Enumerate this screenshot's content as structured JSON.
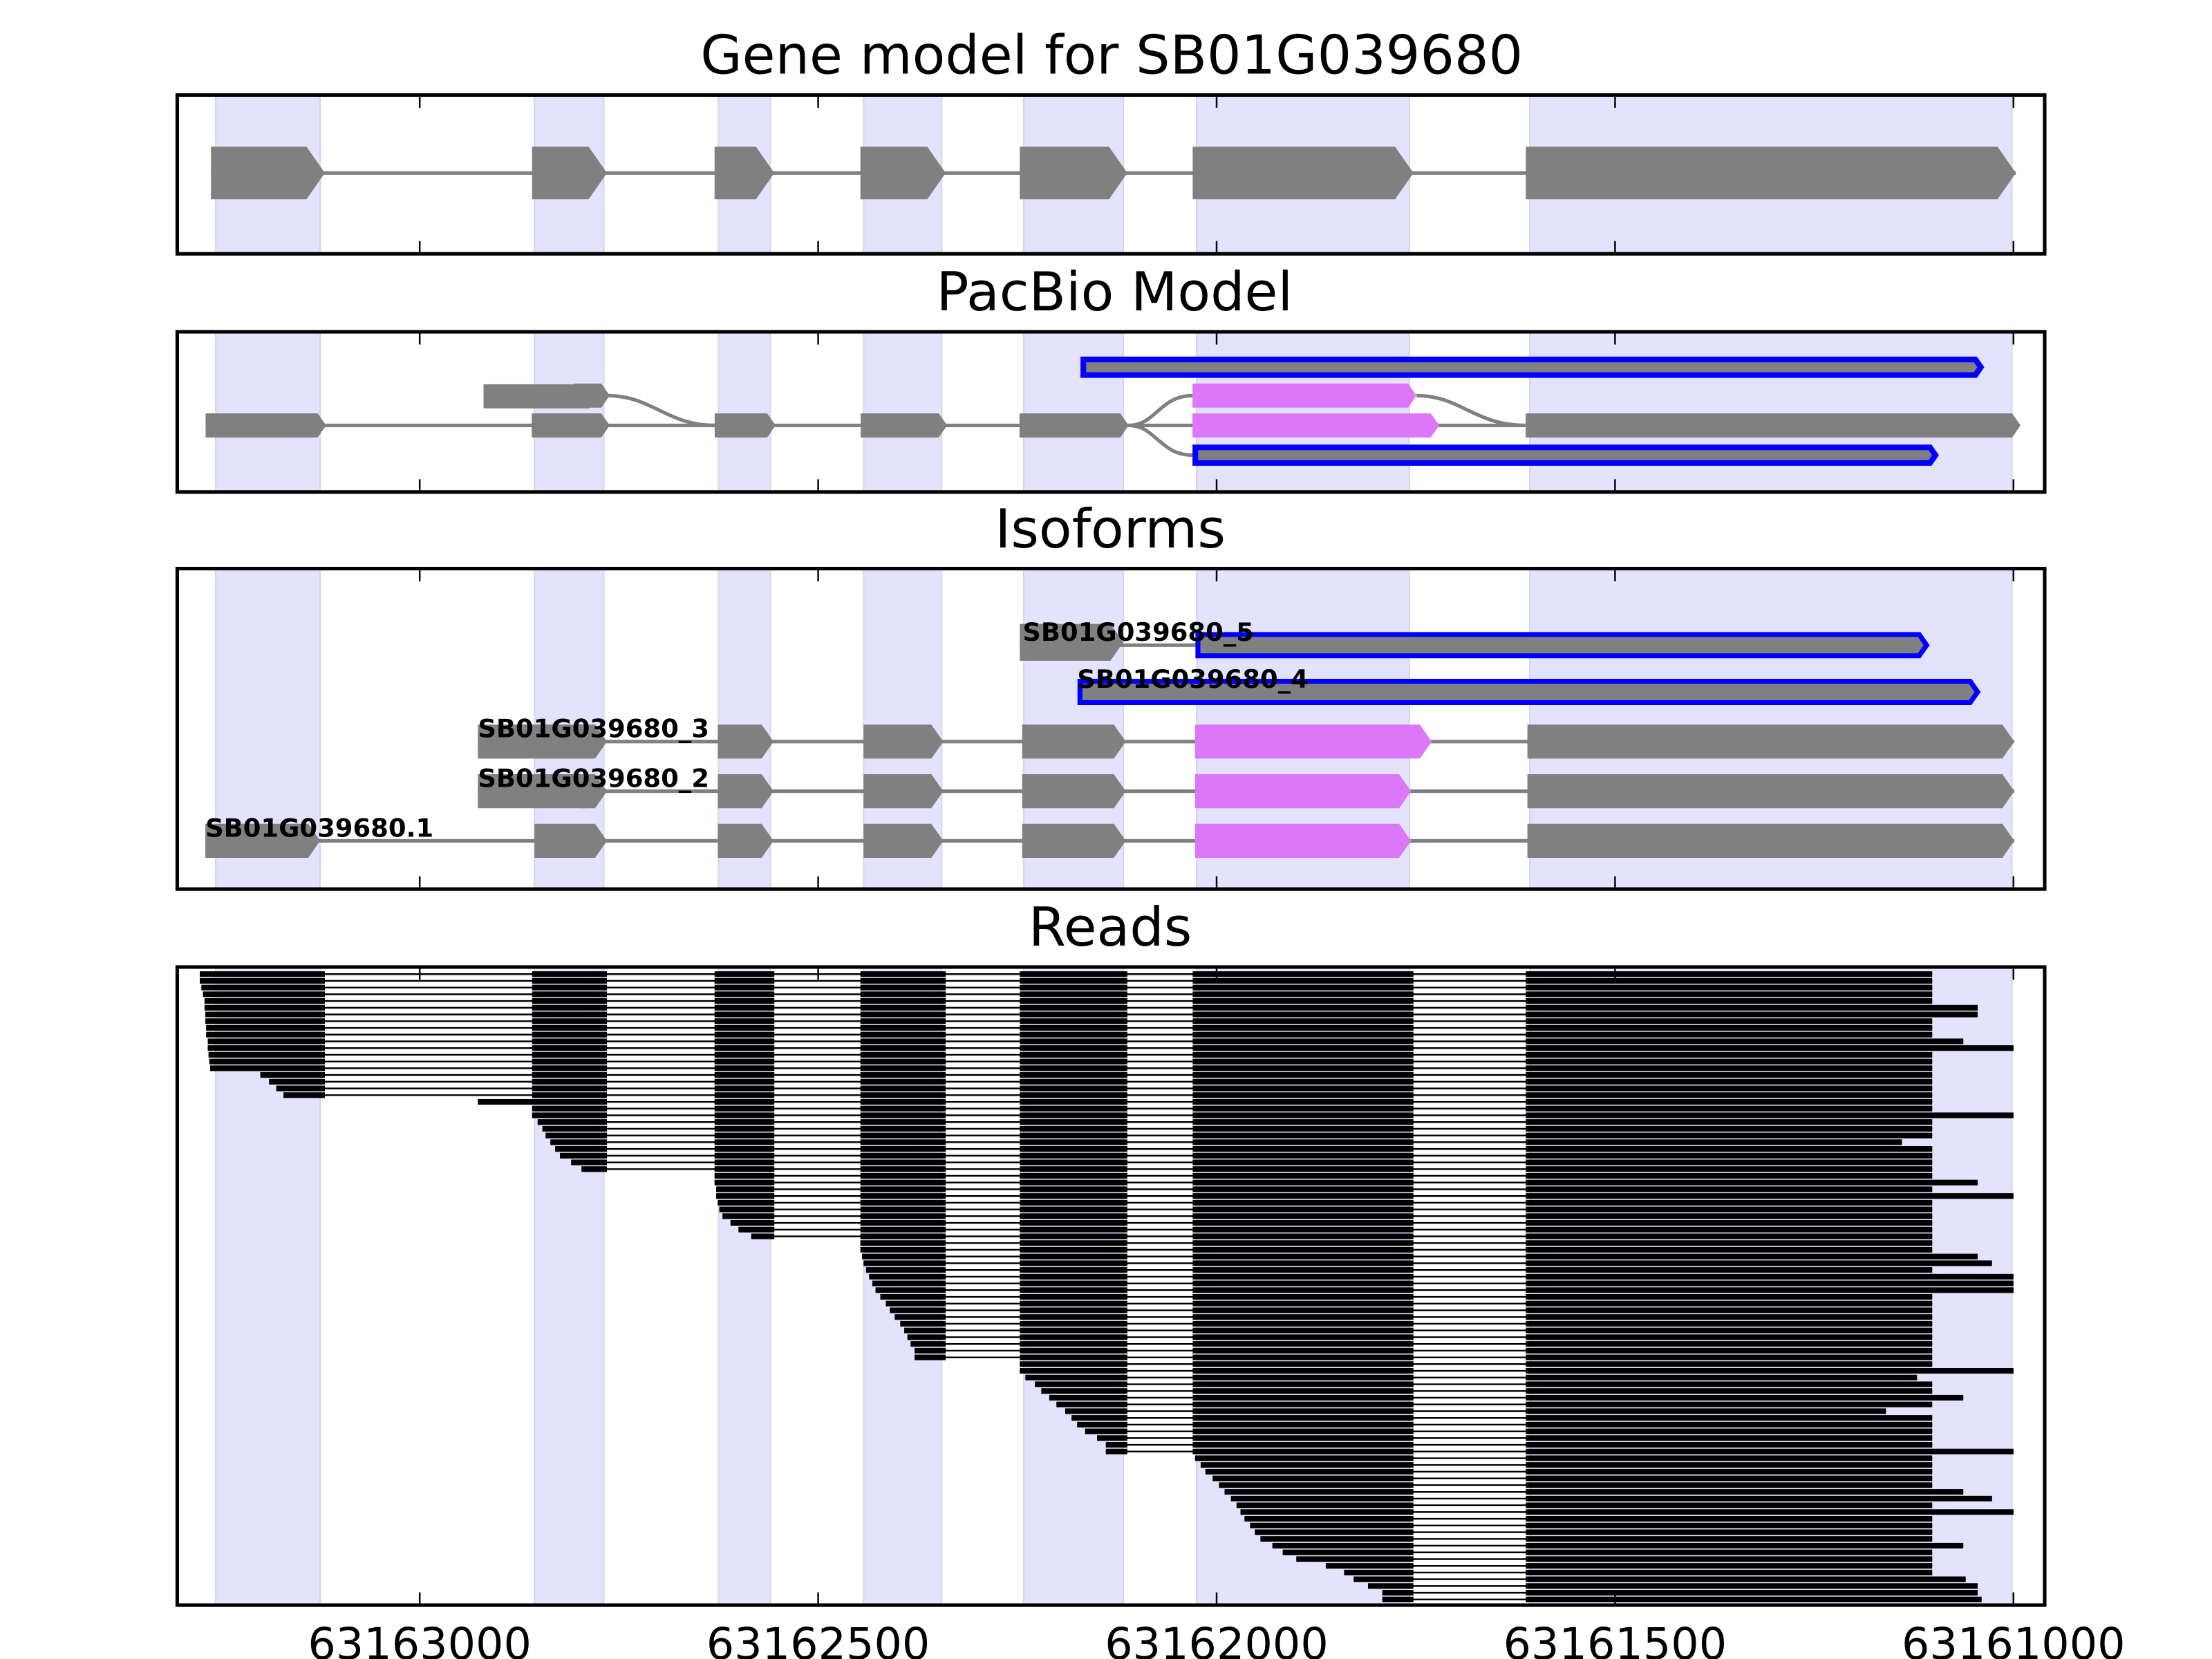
{
  "colors": {
    "exon": "#808080",
    "shade": "#e3e3fd",
    "alt": "#dd77fa",
    "outline": "#0000ff",
    "read": "#000000"
  },
  "chart_data": {
    "type": "gene-track",
    "xlim": [
      63163304,
      63160961
    ],
    "xticks": [
      63163000,
      63162500,
      63162000,
      63161500,
      63161000
    ],
    "xtick_labels": [
      "63163000",
      "63162500",
      "63162000",
      "63161500",
      "63161000"
    ],
    "shaded_exons": [
      [
        63163256,
        63163125
      ],
      [
        63162856,
        63162769
      ],
      [
        63162625,
        63162560
      ],
      [
        63162443,
        63162345
      ],
      [
        63162242,
        63162117
      ],
      [
        63162025,
        63161758
      ],
      [
        63161607,
        63161002
      ]
    ],
    "panels": [
      {
        "title": "Gene model for SB01G039680",
        "exons": [
          [
            63163262,
            63163119
          ],
          [
            63162859,
            63162765
          ],
          [
            63162630,
            63162555
          ],
          [
            63162447,
            63162340
          ],
          [
            63162247,
            63162112
          ],
          [
            63162030,
            63161753
          ],
          [
            63161612,
            63160997
          ]
        ]
      },
      {
        "title": "PacBio Model"
      },
      {
        "title": "Isoforms",
        "isoforms": [
          {
            "label": "SB01G039680.1",
            "exons": [
              [
                63163269,
                63163125
              ],
              [
                63162856,
                63162765
              ],
              [
                63162626,
                63162556
              ],
              [
                63162443,
                63162343
              ],
              [
                63162244,
                63162114
              ],
              [
                63162027,
                63161756,
                "alt"
              ],
              [
                63161610,
                63160999
              ]
            ]
          },
          {
            "label": "SB01G039680_2",
            "exons": [
              [
                63162927,
                63162765
              ],
              [
                63162626,
                63162556
              ],
              [
                63162443,
                63162343
              ],
              [
                63162244,
                63162114
              ],
              [
                63162027,
                63161756,
                "alt"
              ],
              [
                63161610,
                63160999
              ]
            ]
          },
          {
            "label": "SB01G039680_3",
            "exons": [
              [
                63162927,
                63162765
              ],
              [
                63162626,
                63162556
              ],
              [
                63162443,
                63162343
              ],
              [
                63162244,
                63162114
              ],
              [
                63162027,
                63161730,
                "alt"
              ],
              [
                63161610,
                63160999
              ]
            ]
          },
          {
            "label": "SB01G039680_4",
            "exons": [
              [
                63162175,
                63161045,
                "outline"
              ]
            ]
          },
          {
            "label": "SB01G039680_5",
            "exons": [
              [
                63162247,
                63162117
              ],
              [
                63162027,
                63161109,
                "outline"
              ]
            ]
          }
        ]
      },
      {
        "title": "Reads"
      }
    ],
    "reads": [
      [
        63163276,
        63161102
      ],
      [
        63163276,
        63161102
      ],
      [
        63163274,
        63161102
      ],
      [
        63163272,
        63161102
      ],
      [
        63163270,
        63161102
      ],
      [
        63163270,
        63161045
      ],
      [
        63163269,
        63161045
      ],
      [
        63163269,
        63161102
      ],
      [
        63163268,
        63161102
      ],
      [
        63163268,
        63161102
      ],
      [
        63163266,
        63161063
      ],
      [
        63163266,
        63161000
      ],
      [
        63163265,
        63161102
      ],
      [
        63163264,
        63161102
      ],
      [
        63163263,
        63161102
      ],
      [
        63163200,
        63161102
      ],
      [
        63163189,
        63161102
      ],
      [
        63163180,
        63161102
      ],
      [
        63163171,
        63161102
      ],
      [
        63162927,
        63161102
      ],
      [
        63162859,
        63161102
      ],
      [
        63162859,
        63161000
      ],
      [
        63162852,
        63161102
      ],
      [
        63162846,
        63161102
      ],
      [
        63162842,
        63161102
      ],
      [
        63162836,
        63161140
      ],
      [
        63162830,
        63161102
      ],
      [
        63162824,
        63161102
      ],
      [
        63162810,
        63161102
      ],
      [
        63162797,
        63161102
      ],
      [
        63162630,
        63161102
      ],
      [
        63162630,
        63161045
      ],
      [
        63162628,
        63161102
      ],
      [
        63162628,
        63161000
      ],
      [
        63162626,
        63161102
      ],
      [
        63162624,
        63161102
      ],
      [
        63162620,
        63161102
      ],
      [
        63162610,
        63161102
      ],
      [
        63162600,
        63161102
      ],
      [
        63162584,
        63161102
      ],
      [
        63162447,
        63161102
      ],
      [
        63162447,
        63161102
      ],
      [
        63162445,
        63161045
      ],
      [
        63162443,
        63161027
      ],
      [
        63162440,
        63161102
      ],
      [
        63162436,
        63161000
      ],
      [
        63162432,
        63161000
      ],
      [
        63162428,
        63161000
      ],
      [
        63162422,
        63161102
      ],
      [
        63162415,
        63161102
      ],
      [
        63162410,
        63161102
      ],
      [
        63162404,
        63161102
      ],
      [
        63162397,
        63161102
      ],
      [
        63162392,
        63161102
      ],
      [
        63162388,
        63161102
      ],
      [
        63162384,
        63161102
      ],
      [
        63162379,
        63161102
      ],
      [
        63162379,
        63161102
      ],
      [
        63162247,
        63161102
      ],
      [
        63162247,
        63161000
      ],
      [
        63162240,
        63161121
      ],
      [
        63162228,
        63161102
      ],
      [
        63162220,
        63161102
      ],
      [
        63162210,
        63161063
      ],
      [
        63162201,
        63161102
      ],
      [
        63162190,
        63161160
      ],
      [
        63162182,
        63161102
      ],
      [
        63162175,
        63161102
      ],
      [
        63162165,
        63161102
      ],
      [
        63162150,
        63161102
      ],
      [
        63162139,
        63161102
      ],
      [
        63162139,
        63161000
      ],
      [
        63162027,
        63161102
      ],
      [
        63162020,
        63161102
      ],
      [
        63162014,
        63161102
      ],
      [
        63162005,
        63161102
      ],
      [
        63161997,
        63161102
      ],
      [
        63161990,
        63161063
      ],
      [
        63161982,
        63161027
      ],
      [
        63161975,
        63161102
      ],
      [
        63161970,
        63161000
      ],
      [
        63161965,
        63161102
      ],
      [
        63161958,
        63161102
      ],
      [
        63161952,
        63161102
      ],
      [
        63161945,
        63161102
      ],
      [
        63161930,
        63161063
      ],
      [
        63161917,
        63161102
      ],
      [
        63161900,
        63161102
      ],
      [
        63161863,
        63161102
      ],
      [
        63161840,
        63161102
      ],
      [
        63161828,
        63161060
      ],
      [
        63161810,
        63161045
      ],
      [
        63161792,
        63161045
      ],
      [
        63161792,
        63161040
      ]
    ]
  }
}
